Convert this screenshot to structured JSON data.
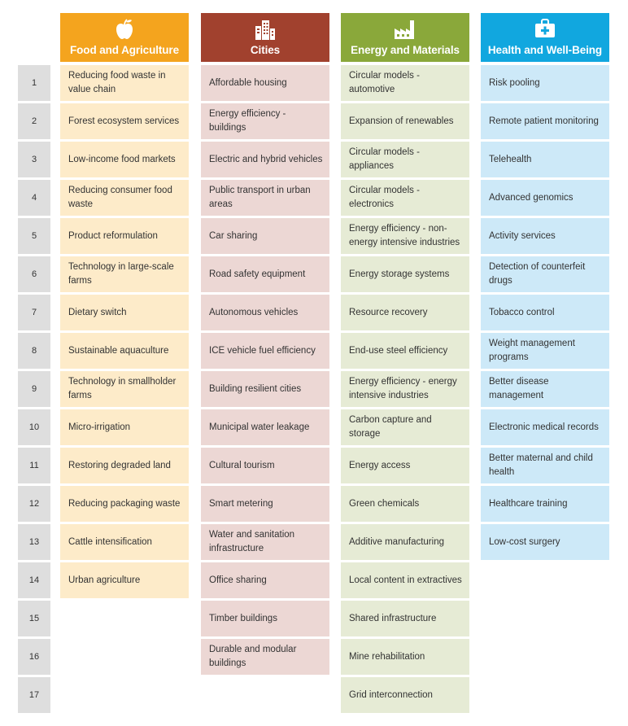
{
  "row_numbers": [
    "1",
    "2",
    "3",
    "4",
    "5",
    "6",
    "7",
    "8",
    "9",
    "10",
    "11",
    "12",
    "13",
    "14",
    "15",
    "16",
    "17"
  ],
  "columns": [
    {
      "title": "Food and Agriculture",
      "icon": "apple-icon",
      "color": "#f4a41e",
      "items": [
        "Reducing food waste in value chain",
        "Forest ecosystem services",
        "Low-income food markets",
        "Reducing consumer food waste",
        "Product reformulation",
        "Technology in large-scale farms",
        "Dietary switch",
        "Sustainable aquaculture",
        "Technology in smallholder farms",
        "Micro-irrigation",
        "Restoring degraded land",
        "Reducing packaging waste",
        "Cattle intensification",
        "Urban agriculture"
      ]
    },
    {
      "title": "Cities",
      "icon": "buildings-icon",
      "color": "#a1412e",
      "items": [
        "Affordable housing",
        "Energy efficiency - buildings",
        "Electric and hybrid vehicles",
        "Public transport in urban areas",
        "Car sharing",
        "Road safety equipment",
        "Autonomous vehicles",
        "ICE vehicle fuel efficiency",
        "Building resilient cities",
        "Municipal water leakage",
        "Cultural tourism",
        "Smart metering",
        "Water and sanitation infrastructure",
        "Office sharing",
        "Timber buildings",
        "Durable and modular buildings"
      ]
    },
    {
      "title": "Energy and Materials",
      "icon": "factory-icon",
      "color": "#8aa83a",
      "items": [
        "Circular models - automotive",
        "Expansion of renewables",
        "Circular models - appliances",
        "Circular models - electronics",
        "Energy efficiency - non-energy intensive industries",
        "Energy storage systems",
        "Resource recovery",
        "End-use steel efficiency",
        "Energy efficiency - energy intensive industries",
        "Carbon capture and storage",
        "Energy access",
        "Green chemicals",
        "Additive manufacturing",
        "Local content in extractives",
        "Shared infrastructure",
        "Mine rehabilitation",
        "Grid interconnection"
      ]
    },
    {
      "title": "Health and Well-Being",
      "icon": "medical-kit-icon",
      "color": "#11a7df",
      "items": [
        "Risk pooling",
        "Remote patient monitoring",
        "Telehealth",
        "Advanced genomics",
        "Activity services",
        "Detection of counterfeit drugs",
        "Tobacco control",
        "Weight management programs",
        "Better disease management",
        "Electronic medical records",
        "Better maternal and child health",
        "Healthcare training",
        "Low-cost surgery"
      ]
    }
  ]
}
